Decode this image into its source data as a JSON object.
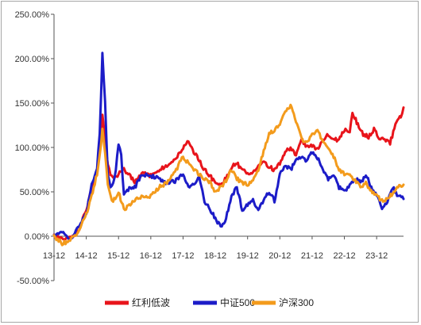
{
  "chart_data": {
    "type": "line",
    "title": "",
    "xlabel": "",
    "ylabel": "",
    "ylim": [
      -50,
      250
    ],
    "yticks": [
      "250.00%",
      "200.00%",
      "150.00%",
      "100.00%",
      "50.00%",
      "0.00%",
      "-50.00%"
    ],
    "ytick_values": [
      250,
      200,
      150,
      100,
      50,
      0,
      -50
    ],
    "xticks": [
      "13-12",
      "14-12",
      "15-12",
      "16-12",
      "17-12",
      "18-12",
      "19-12",
      "20-12",
      "21-12",
      "22-12",
      "23-12"
    ],
    "xtick_values": [
      0,
      12,
      24,
      36,
      48,
      60,
      72,
      84,
      96,
      108,
      120
    ],
    "x_unit": "months since Dec-2013",
    "xlim": [
      0,
      130
    ],
    "legend_position": "bottom",
    "grid": false,
    "series": [
      {
        "name": "红利低波",
        "color": "#e8141b",
        "x": [
          0,
          3,
          6,
          9,
          12,
          14,
          16,
          17,
          18,
          19,
          20,
          21,
          22,
          24,
          26,
          28,
          30,
          33,
          36,
          39,
          42,
          45,
          48,
          50,
          52,
          54,
          56,
          58,
          60,
          62,
          64,
          66,
          68,
          70,
          72,
          74,
          76,
          78,
          80,
          82,
          84,
          86,
          88,
          90,
          92,
          94,
          96,
          98,
          100,
          102,
          104,
          106,
          108,
          110,
          111,
          113,
          115,
          117,
          119,
          121,
          123,
          125,
          127,
          129,
          130
        ],
        "values": [
          0,
          -3,
          -2,
          5,
          30,
          55,
          75,
          100,
          135,
          110,
          80,
          70,
          65,
          70,
          75,
          70,
          60,
          72,
          68,
          75,
          80,
          85,
          100,
          108,
          95,
          85,
          75,
          68,
          60,
          58,
          65,
          78,
          82,
          75,
          70,
          72,
          80,
          85,
          78,
          75,
          82,
          95,
          100,
          90,
          110,
          100,
          102,
          98,
          108,
          115,
          110,
          108,
          120,
          118,
          140,
          125,
          115,
          112,
          120,
          110,
          108,
          105,
          125,
          135,
          145
        ]
      },
      {
        "name": "中证500",
        "color": "#1c1cc8",
        "x": [
          0,
          3,
          6,
          9,
          12,
          14,
          16,
          17,
          18,
          19,
          20,
          21,
          22,
          23,
          24,
          25,
          26,
          28,
          30,
          33,
          36,
          39,
          42,
          45,
          48,
          50,
          52,
          54,
          56,
          58,
          60,
          62,
          64,
          66,
          68,
          70,
          72,
          74,
          76,
          78,
          80,
          82,
          84,
          86,
          88,
          90,
          92,
          94,
          96,
          98,
          100,
          102,
          104,
          106,
          108,
          110,
          112,
          114,
          116,
          118,
          120,
          121,
          122,
          124,
          126,
          128,
          130
        ],
        "values": [
          0,
          5,
          -5,
          10,
          25,
          60,
          75,
          115,
          205,
          150,
          70,
          55,
          60,
          75,
          105,
          90,
          45,
          55,
          55,
          70,
          68,
          65,
          60,
          62,
          70,
          55,
          60,
          65,
          40,
          30,
          20,
          10,
          20,
          45,
          55,
          30,
          35,
          40,
          30,
          40,
          50,
          40,
          70,
          80,
          75,
          85,
          90,
          85,
          95,
          88,
          75,
          65,
          70,
          55,
          50,
          58,
          65,
          60,
          70,
          55,
          45,
          40,
          30,
          38,
          55,
          45,
          42
        ]
      },
      {
        "name": "沪深300",
        "color": "#f39b1c",
        "x": [
          0,
          3,
          6,
          9,
          12,
          14,
          16,
          17,
          18,
          19,
          20,
          21,
          22,
          24,
          26,
          28,
          30,
          33,
          36,
          39,
          42,
          45,
          48,
          50,
          52,
          54,
          56,
          58,
          60,
          62,
          64,
          66,
          68,
          70,
          72,
          74,
          76,
          78,
          80,
          82,
          84,
          86,
          88,
          90,
          92,
          94,
          96,
          98,
          100,
          102,
          104,
          106,
          108,
          110,
          112,
          114,
          116,
          118,
          120,
          122,
          124,
          126,
          128,
          130
        ],
        "values": [
          0,
          -8,
          -5,
          5,
          25,
          45,
          70,
          90,
          120,
          95,
          60,
          45,
          40,
          50,
          30,
          35,
          40,
          45,
          45,
          55,
          60,
          72,
          90,
          82,
          75,
          70,
          65,
          60,
          50,
          55,
          62,
          75,
          65,
          60,
          58,
          62,
          75,
          95,
          115,
          120,
          125,
          140,
          148,
          130,
          110,
          105,
          115,
          120,
          105,
          100,
          90,
          75,
          70,
          68,
          62,
          55,
          60,
          50,
          45,
          40,
          42,
          48,
          55,
          58
        ]
      }
    ]
  }
}
